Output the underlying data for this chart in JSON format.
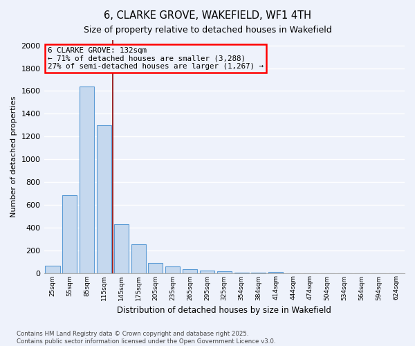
{
  "title": "6, CLARKE GROVE, WAKEFIELD, WF1 4TH",
  "subtitle": "Size of property relative to detached houses in Wakefield",
  "xlabel": "Distribution of detached houses by size in Wakefield",
  "ylabel": "Number of detached properties",
  "bar_color": "#c5d8ee",
  "bar_edge_color": "#5b9bd5",
  "background_color": "#eef2fb",
  "grid_color": "#ffffff",
  "categories": [
    "25sqm",
    "55sqm",
    "85sqm",
    "115sqm",
    "145sqm",
    "175sqm",
    "205sqm",
    "235sqm",
    "265sqm",
    "295sqm",
    "325sqm",
    "354sqm",
    "384sqm",
    "414sqm",
    "444sqm",
    "474sqm",
    "504sqm",
    "534sqm",
    "564sqm",
    "594sqm",
    "624sqm"
  ],
  "values": [
    65,
    685,
    1640,
    1300,
    430,
    255,
    90,
    55,
    35,
    20,
    15,
    5,
    2,
    10,
    0,
    0,
    0,
    0,
    0,
    0,
    0
  ],
  "vline_x_index": 3.5,
  "annotation_title": "6 CLARKE GROVE: 132sqm",
  "annotation_line1": "← 71% of detached houses are smaller (3,288)",
  "annotation_line2": "27% of semi-detached houses are larger (1,267) →",
  "vline_color": "#8b0000",
  "ylim": [
    0,
    2050
  ],
  "yticks": [
    0,
    200,
    400,
    600,
    800,
    1000,
    1200,
    1400,
    1600,
    1800,
    2000
  ],
  "footnote1": "Contains HM Land Registry data © Crown copyright and database right 2025.",
  "footnote2": "Contains public sector information licensed under the Open Government Licence v3.0."
}
